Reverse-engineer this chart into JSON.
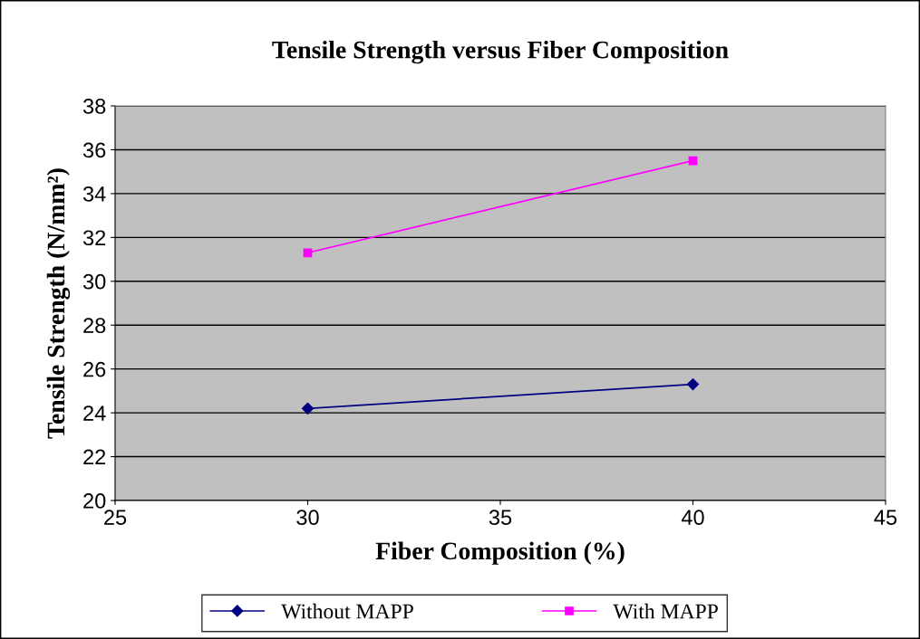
{
  "chart_data": {
    "type": "line",
    "title": "Tensile Strength versus Fiber Composition",
    "xlabel": "Fiber Composition (%)",
    "ylabel": "Tensile Strength (N/mm²)",
    "x": [
      30,
      40
    ],
    "series": [
      {
        "name": "Without MAPP",
        "color": "#000080",
        "values": [
          24.2,
          25.3
        ],
        "marker": "diamond"
      },
      {
        "name": "With MAPP",
        "color": "#ff00ff",
        "values": [
          31.3,
          35.5
        ],
        "marker": "square"
      }
    ],
    "xlim": [
      25,
      45
    ],
    "xticks": [
      25,
      30,
      35,
      40,
      45
    ],
    "ylim": [
      20,
      38
    ],
    "yticks": [
      20,
      22,
      24,
      26,
      28,
      30,
      32,
      34,
      36,
      38
    ],
    "grid": "y",
    "legend": "bottom",
    "line_style": "solid"
  }
}
